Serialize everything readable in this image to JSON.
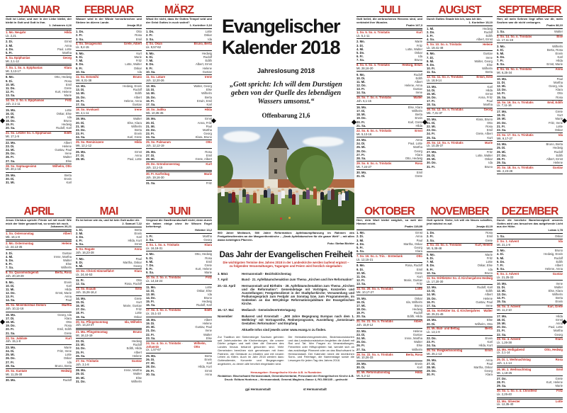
{
  "page_title": "Evangelischer Kalender 2018",
  "colors": {
    "accent_red": "#c32a21",
    "ink": "#161616",
    "paper": "#ffffff"
  },
  "weekday_abbr": [
    "Mo.",
    "Di.",
    "Mi.",
    "Do.",
    "Fr.",
    "Sa.",
    "So."
  ],
  "nameday_pool": [
    "Karl",
    "Hilda",
    "Ernst",
    "Anna",
    "Paul",
    "Martha",
    "Georg",
    "Klara",
    "Otto",
    "Rosa",
    "Emil",
    "Grete",
    "Kurt",
    "Marie",
    "Fritz",
    "Lotte",
    "Oskar",
    "Ida",
    "Bruno",
    "Hedwig",
    "Rudolf",
    "Edith",
    "Albert",
    "Helene",
    "Gustav",
    "Irene",
    "Walter",
    "Else",
    "Wilhelm",
    "Berta",
    "Erwin"
  ],
  "center": {
    "title1": "Evangelischer",
    "title2": "Kalender 2018",
    "jahreslosung_label": "Jahreslosung 2018",
    "quote": "„Gott spricht: Ich will dem Durstigen geben von der Quelle des lebendigen Wassers umsonst.“",
    "quote_ref": "Offenbarung 21,6",
    "photo_caption": "500 Jahre Mediasch, 500 Jahre Reformation: Apfelbaumpflanzung im Rahmen des Festgottesdienstes an der Margarethenkirche – „Dank Apfelbäumchen für die ganze Welt“ – mit allen daran beteiligten Pfarrern.",
    "photo_credit": "Foto: Stefan Bichler",
    "feature": {
      "heading": "Das Jahr der Evangelischen Freiheit",
      "sub1": "Die wichtigsten Termine des Jahres 2018 in der Landeskirche werden laufend ergänzt –",
      "sub2": "zu folgenden Veranstaltungen, Tagungen und Feiern wird herzlich eingeladen:",
      "schedule": [
        {
          "when": "3. März",
          "text": "Hermannstadt · Bezirkskirchentag"
        },
        {
          "when": "7. April",
          "text": "Bund · 21. Apfelbäumchenaktion zum Thema „Kirchen und ihre Reformation“"
        },
        {
          "when": "20.–22. April",
          "text": "Hermannstadt und Birthälm · 28. Apfelbäumchenaktion zum Thema „Kirchen und die Reformation“: Gemeindetage mit Vorträgen, Konzerten und Ausstellungen; Festgottesdienst in der Stadtpfarrkirche; Versammlung und Podiumsgespräch zum Festjahr am Sonntag bzw. zum Programmende, im Gedenken an das 500-jährige Reformationsjubiläum der Evangelischen Kirche."
        },
        {
          "when": "16.–17. Mai",
          "text": "Mediasch · Gemeindevertretertagung"
        },
        {
          "when": "November",
          "text": "Bukarest und Kronstadt · „500 Jahre Begegnung Europas nach dem 1. Weltkrieg“ mit Vortragsreihe, Rednerprogramm, Ausstellung „Gemeinsam Gestalten: Reformation“ und Empfang"
        }
      ],
      "note": "Aktuelle Infos sind jeweils unter www.evang.ro zu finden."
    },
    "body_col1": "Zur Tradition der Siebenbürger Sachsen gehören seit Jahrhunderten die Kirchenburgen, die unsere Dörfer prägen und weit über die Grenzen des Landes hinaus bekannt geworden sind. Viele Gemeinden bemühen sich gemeinsam mit ihren Partnern, die Gebäude zu erhalten und mit neuem Leben zu füllen. Auch im Jahr 2018 werden dazu Gottesdienste, Konzerte und Begegnungen angeboten, zu denen alle herzlich eingeladen sind.",
    "body_col2": "Die Heimatkirchengemeinden, Bezirkskonsistorien und das Landeskonsistorium begleiten die Arbeit mit Rat und Tat. Wer Fragen zu Veranstaltungen, Freizeiten oder Hilfsprojekten hat, wendet sich an das zuständige Pfarramt oder an das Bischofsamt in Hermannstadt. Der Kalender nennt die kirchlichen Sonn- und Feiertage, die Namenstage sowie die Lesungen für jeden Tag des Jahres 2018.",
    "imprint": {
      "l1": "Herausgeber: Evangelische Kirche A.B. in Rumänien",
      "l2": "Redaktion: Bischofsamt Hermannstadt, Generalsekretariat, Presseamt der Evangelischen Kirche A.B.",
      "l3": "Druck: Editura Honterus – Hermannstadt, General-Magheru-Gasse 4, RO-550185 – gedruckt"
    },
    "footer_left": "gpi Hermannstadt",
    "footer_right": "st Hermannstadt"
  },
  "months": [
    {
      "name": "JANUAR",
      "days": 31,
      "start": 0,
      "verse": "Gott ist Liebe; und wer in der Liebe bleibt, der bleibt in Gott und Gott in ihm.",
      "verse_ref": "1. Johannes 4,16",
      "special": {
        "1": {
          "l": "Neujahr",
          "r": "Lk. 2,21",
          "hd": 1
        },
        "6": {
          "l": "Epiphanias",
          "r": "Mt. 2,1-12",
          "hd": 1
        },
        "7": {
          "l": "1. So. n. Epiphanias",
          "r": "Mt. 3,13-17"
        },
        "14": {
          "l": "2. So. n. Epiphanias",
          "r": "Joh. 2,1-11"
        },
        "21": {
          "l": "Letzter So. n. Epiphanias",
          "r": "Mt. 17,1-9"
        },
        "28": {
          "l": "Septuagesimä",
          "r": "Mt. 20,1-16"
        }
      }
    },
    {
      "name": "FEBRUAR",
      "days": 28,
      "start": 3,
      "verse": "Wasser wird in der Wüste hervorbrechen und Ströme im dürren Lande.",
      "verse_ref": "Jesaja 35,6",
      "special": {
        "4": {
          "l": "Sexagesimä",
          "r": "Lk. 8,4-15"
        },
        "11": {
          "l": "Estomihi",
          "r": "Mk. 8,31-38"
        },
        "18": {
          "l": "Invokavit",
          "r": "Mt. 4,1-11"
        },
        "25": {
          "l": "Reminiszere",
          "r": "Mk. 12,1-12"
        }
      }
    },
    {
      "name": "MÄRZ",
      "days": 31,
      "start": 3,
      "verse": "Wisst ihr nicht, dass ihr Gottes Tempel seid und der Geist Gottes in euch wohnt?",
      "verse_ref": "1. Korinther 3,16",
      "special": {
        "4": {
          "l": "Okuli",
          "r": "Lk. 9,57-62"
        },
        "11": {
          "l": "Lätare",
          "r": "Joh. 12,20-26"
        },
        "18": {
          "l": "Judika",
          "r": "Mk. 10,35-45"
        },
        "25": {
          "l": "Palmarum",
          "r": "Joh. 12,12-19"
        },
        "29": {
          "l": "Gründonnerstag",
          "r": "Joh. 13,1-15",
          "hd": 1
        },
        "30": {
          "l": "Karfreitag",
          "r": "Joh. 19,16-30",
          "hd": 1
        }
      }
    },
    {
      "name": "APRIL",
      "days": 30,
      "start": 6,
      "verse": "Jesus Christus spricht: Friede sei mit euch! Wie mich der Vater gesandt hat, so sende ich euch.",
      "verse_ref": "Johannes 20,21",
      "special": {
        "1": {
          "l": "Ostersonntag",
          "r": "Mk. 16,1-8"
        },
        "2": {
          "l": "Ostermontag",
          "r": "Lk. 24,13-35",
          "hd": 1
        },
        "8": {
          "l": "Quasimodogeniti",
          "r": "Joh. 20,19-29"
        },
        "15": {
          "l": "Miserikordias Domini",
          "r": "Joh. 10,11-16"
        },
        "22": {
          "l": "Jubilate",
          "r": "Joh. 15,1-8"
        },
        "29": {
          "l": "Kantate",
          "r": "Mt. 11,25-30"
        }
      }
    },
    {
      "name": "MAI",
      "days": 31,
      "start": 1,
      "verse": "Es ist keiner wie du, und ist kein Gott außer dir.",
      "verse_ref": "2. Samuel 7,22",
      "special": {
        "6": {
          "l": "Rogate",
          "r": "Joh. 16,23-28"
        },
        "10": {
          "l": "Christi Himmelfahrt",
          "r": "Lk. 24,44-53",
          "hd": 1
        },
        "13": {
          "l": "Exaudi",
          "r": "Joh. 15,26-16,4"
        },
        "20": {
          "l": "Pfingstsonntag",
          "r": "Joh. 14,23-27"
        },
        "21": {
          "l": "Pfingstmontag",
          "r": "Mt. 16,13-19",
          "hd": 1
        },
        "27": {
          "l": "Trinitatis",
          "r": "Joh. 3,1-8"
        }
      }
    },
    {
      "name": "JUNI",
      "days": 30,
      "start": 4,
      "verse": "Vergesst die Gastfreundschaft nicht; denn durch sie haben einige ohne ihr Wissen Engel beherbergt.",
      "verse_ref": "Hebräer 13,2",
      "special": {
        "3": {
          "l": "1. So. n. Trinitatis",
          "r": "Lk. 16,19-31"
        },
        "10": {
          "l": "2. So. n. Trinitatis",
          "r": "Lk. 14,15-24"
        },
        "17": {
          "l": "3. So. n. Trinitatis",
          "r": "Lk. 15,1-10"
        },
        "24": {
          "l": "4. So. n. Trinitatis · Johannis",
          "r": "Lk. 1,57-67"
        }
      }
    },
    {
      "name": "JULI",
      "days": 31,
      "start": 6,
      "verse": "Gott heilet, die zerbrochenen Herzens sind, und verbindet ihre Wunden.",
      "verse_ref": "Psalm 147,3",
      "special": {
        "1": {
          "l": "5. So. n. Trinitatis",
          "r": "Lk. 5,1-11"
        },
        "8": {
          "l": "6. So. n. Trinitatis",
          "r": "Mt. 28,16-20"
        },
        "15": {
          "l": "7. So. n. Trinitatis",
          "r": "Joh. 6,1-15"
        },
        "22": {
          "l": "8. So. n. Trinitatis",
          "r": "Mt. 5,13-16"
        },
        "29": {
          "l": "9. So. n. Trinitatis",
          "r": "Mt. 7,24-27"
        }
      }
    },
    {
      "name": "AUGUST",
      "days": 31,
      "start": 2,
      "verse": "Durch Gottes Gnade bin ich, was ich bin.",
      "verse_ref": "1. Korinther 15,10",
      "special": {
        "5": {
          "l": "10. So. n. Trinitatis",
          "r": "Lk. 19,41-48"
        },
        "12": {
          "l": "11. So. n. Trinitatis",
          "r": "Lk. 18,9-14"
        },
        "19": {
          "l": "12. So. n. Trinitatis",
          "r": "Mk. 7,31-37"
        },
        "26": {
          "l": "13. So. n. Trinitatis",
          "r": "Lk. 10,25-37"
        }
      }
    },
    {
      "name": "SEPTEMBER",
      "days": 30,
      "start": 5,
      "verse": "Herr, all mein Sehnen liegt offen vor dir, mein Seufzen war dir nicht verborgen.",
      "verse_ref": "Psalm 38,10",
      "special": {
        "2": {
          "l": "14. So. n. Trinitatis",
          "r": "Lk. 17,11-19"
        },
        "9": {
          "l": "15. So. n. Trinitatis",
          "r": "Mt. 6,25-34"
        },
        "16": {
          "l": "16. So. n. Trinitatis",
          "r": "Lk. 7,11-16"
        },
        "23": {
          "l": "17. So. n. Trinitatis",
          "r": "Mk. 9,17-27"
        },
        "30": {
          "l": "18. So. n. Trinitatis",
          "r": "Mk. 2,23-28"
        }
      }
    },
    {
      "name": "OKTOBER",
      "days": 31,
      "start": 0,
      "verse": "Herr, dein Wort bleibt ewiglich, so weit der Himmel reicht.",
      "verse_ref": "Psalm 119,89",
      "special": {
        "7": {
          "l": "19. So. n. Trin. · Erntedank",
          "r": "Lk. 12,15-21"
        },
        "14": {
          "l": "20. So. n. Trinitatis",
          "r": "Mk. 10,17-27"
        },
        "21": {
          "l": "21. So. n. Trinitatis",
          "r": "Joh. 15,9-12"
        },
        "28": {
          "l": "22. So. n. Trinitatis",
          "r": "Mt. 10,26-33"
        },
        "31": {
          "l": "Reformationstag",
          "r": "Mt. 5,2-12",
          "hd": 1
        }
      }
    },
    {
      "name": "NOVEMBER",
      "days": 30,
      "start": 3,
      "verse": "Gott spricht: Siehe, ich will ein Neues schaffen, jetzt wächst es auf.",
      "verse_ref": "Jesaja 43,19",
      "special": {
        "4": {
          "l": "23. So. n. Trinitatis",
          "r": "Mt. 5,38-48"
        },
        "11": {
          "l": "Drittletzter So. d. Kirchenjahres",
          "r": "Lk. 17,20-30"
        },
        "18": {
          "l": "Vorletzter So. d. Kirchenjahres",
          "r": "Mt. 25,31-46"
        },
        "21": {
          "l": "Buß- und Bettag",
          "r": "Lk. 13,1-9",
          "hd": 1
        },
        "25": {
          "l": "Ewigkeitssonntag",
          "r": "Mt. 25,1-13"
        }
      }
    },
    {
      "name": "DEZEMBER",
      "days": 31,
      "start": 5,
      "verse": "Durch die herzliche Barmherzigkeit unseres Gottes wird uns besuchen das aufgehende Licht aus der Höhe.",
      "verse_ref": "Lukas 1,78",
      "special": {
        "2": {
          "l": "1. Advent",
          "r": "Mt. 21,1-9"
        },
        "9": {
          "l": "2. Advent",
          "r": "Lk. 21,25-33"
        },
        "16": {
          "l": "3. Advent",
          "r": "Mt. 11,2-10"
        },
        "23": {
          "l": "4. Advent",
          "r": "Lk. 1,26-38"
        },
        "24": {
          "l": "Heiligabend",
          "r": "Lk. 2,1-14",
          "hd": 1
        },
        "25": {
          "l": "1. Weihnachtstag",
          "r": "Joh. 1,1-14",
          "hd": 1
        },
        "26": {
          "l": "2. Weihnachtstag",
          "r": "Mt. 1,18-25",
          "hd": 1
        },
        "30": {
          "l": "1. So. n. d. Christfest",
          "r": "Lk. 2,25-40"
        },
        "31": {
          "l": "Silvester",
          "r": "Lk. 12,35-40",
          "hd": 1
        }
      }
    }
  ]
}
